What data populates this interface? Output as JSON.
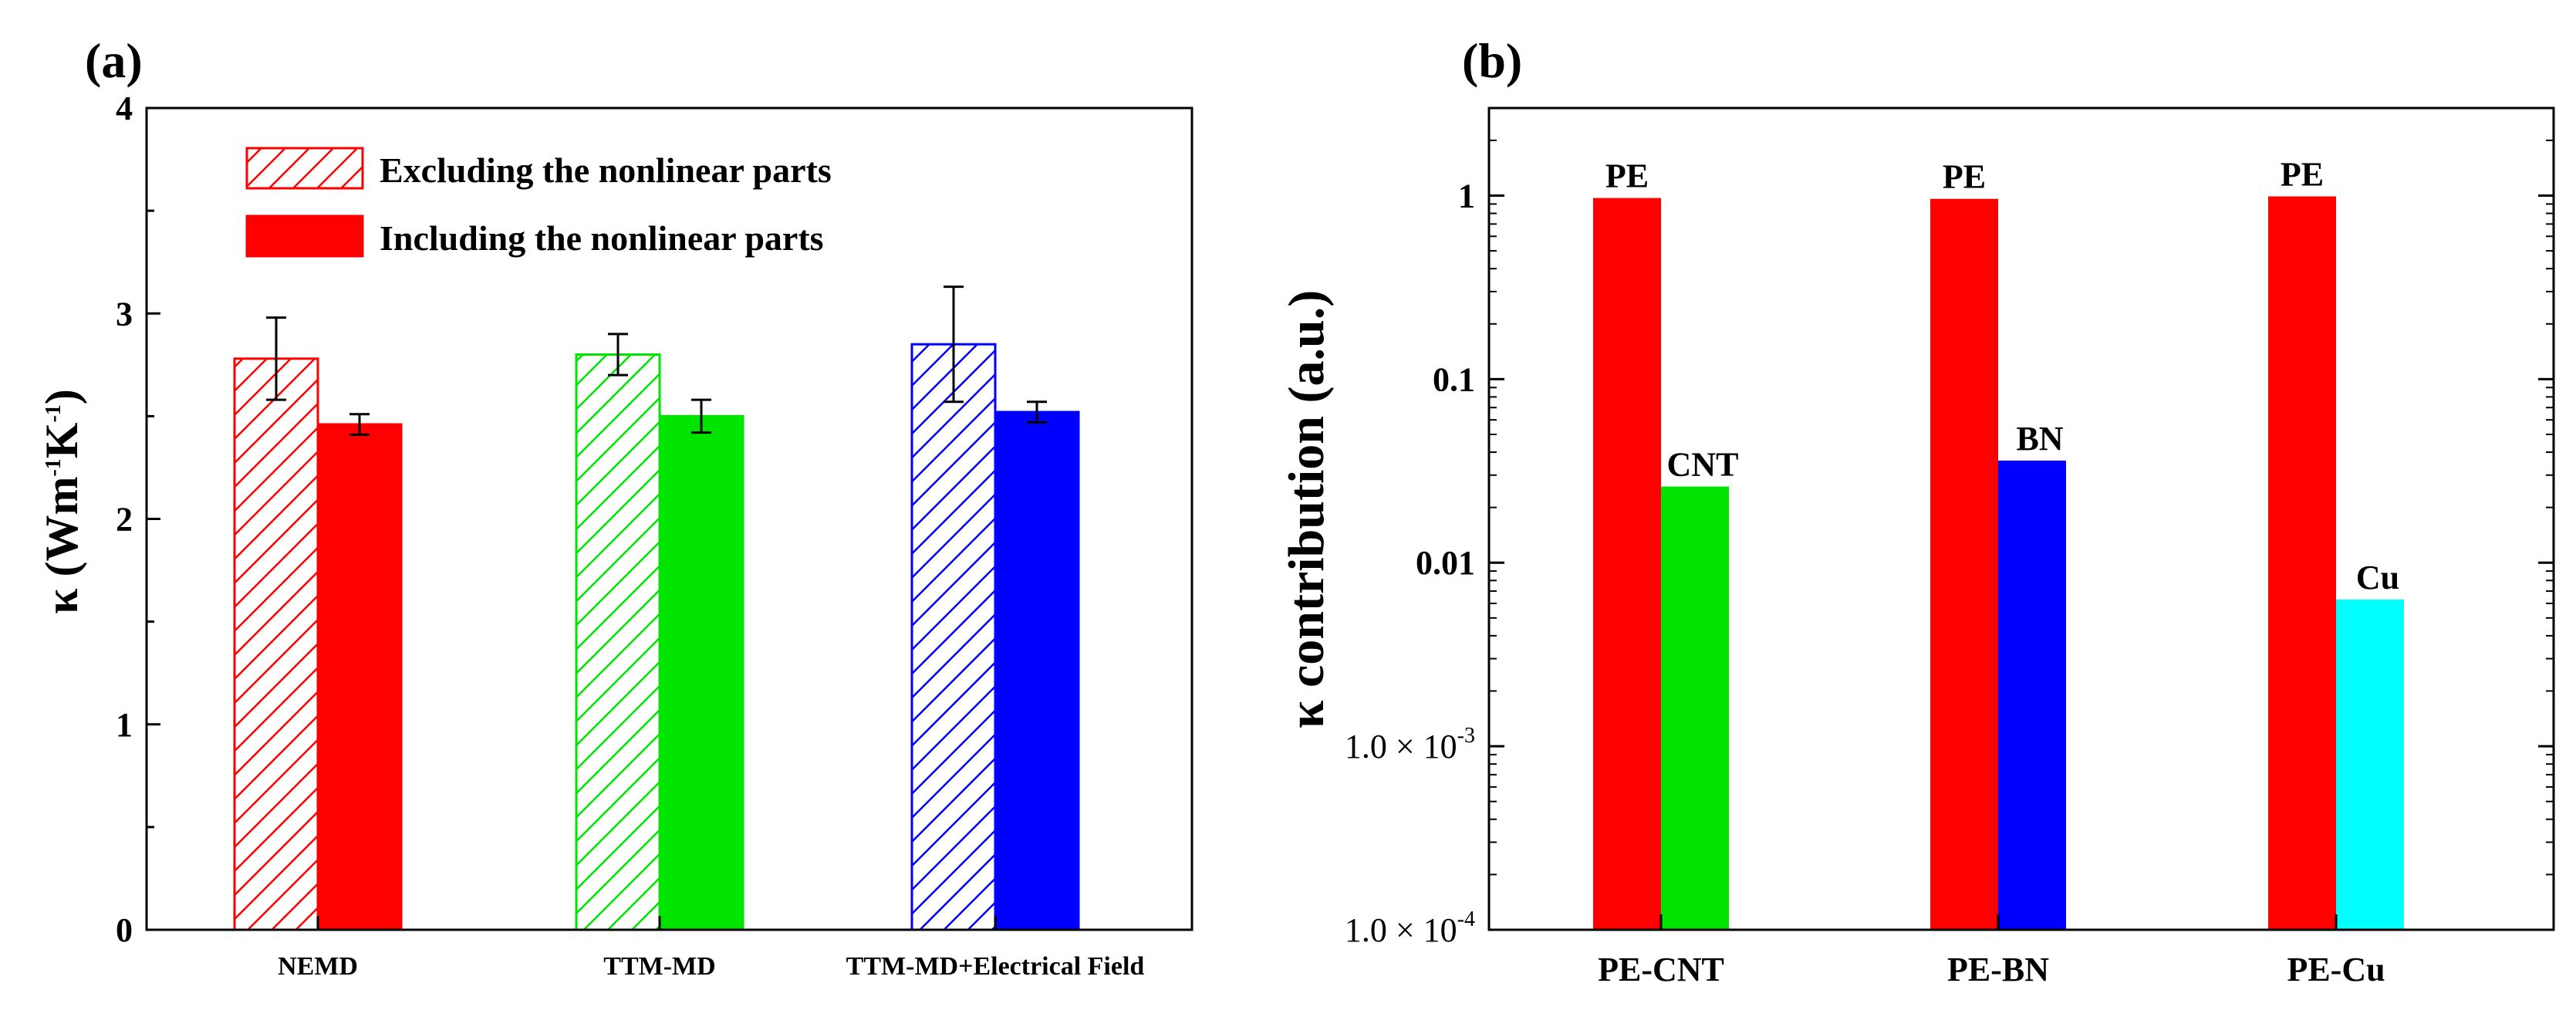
{
  "chart_data": [
    {
      "type": "bar",
      "panel_label": "(a)",
      "ylabel_parts": [
        "κ (Wm",
        "-1",
        "K",
        "-1",
        ")"
      ],
      "categories": [
        "NEMD",
        "TTM-MD",
        "TTM-MD+Electrical Field"
      ],
      "ylim": [
        0,
        4
      ],
      "yticks": [
        "0",
        "1",
        "2",
        "3",
        "4"
      ],
      "legend_position": "top-left",
      "series": [
        {
          "name": "Excluding the nonlinear parts",
          "style": "hatched",
          "values": [
            2.78,
            2.8,
            2.85
          ],
          "errors": [
            0.2,
            0.1,
            0.28
          ]
        },
        {
          "name": "Including  the nonlinear parts",
          "style": "solid",
          "values": [
            2.46,
            2.5,
            2.52
          ],
          "errors": [
            0.05,
            0.08,
            0.05
          ]
        }
      ],
      "category_colors": [
        "#ff0000",
        "#00e400",
        "#0000ff"
      ]
    },
    {
      "type": "bar",
      "panel_label": "(b)",
      "ylabel": "κ contribution (a.u.)",
      "yscale": "log",
      "ylim": [
        0.0001,
        3
      ],
      "yticks": [
        {
          "value": 0.0001,
          "mantissa": "1.0 × 10",
          "exp": "-4"
        },
        {
          "value": 0.001,
          "mantissa": "1.0 × 10",
          "exp": "-3"
        },
        {
          "value": 0.01,
          "label": "0.01"
        },
        {
          "value": 0.1,
          "label": "0.1"
        },
        {
          "value": 1,
          "label": "1"
        }
      ],
      "categories": [
        "PE-CNT",
        "PE-BN",
        "PE-Cu"
      ],
      "groups": [
        {
          "bars": [
            {
              "label": "PE",
              "value": 0.97,
              "color": "#ff0000"
            },
            {
              "label": "CNT",
              "value": 0.026,
              "color": "#00e400"
            }
          ]
        },
        {
          "bars": [
            {
              "label": "PE",
              "value": 0.96,
              "color": "#ff0000"
            },
            {
              "label": "BN",
              "value": 0.036,
              "color": "#0000ff"
            }
          ]
        },
        {
          "bars": [
            {
              "label": "PE",
              "value": 0.99,
              "color": "#ff0000"
            },
            {
              "label": "Cu",
              "value": 0.0063,
              "color": "#00ffff"
            }
          ]
        }
      ]
    }
  ]
}
